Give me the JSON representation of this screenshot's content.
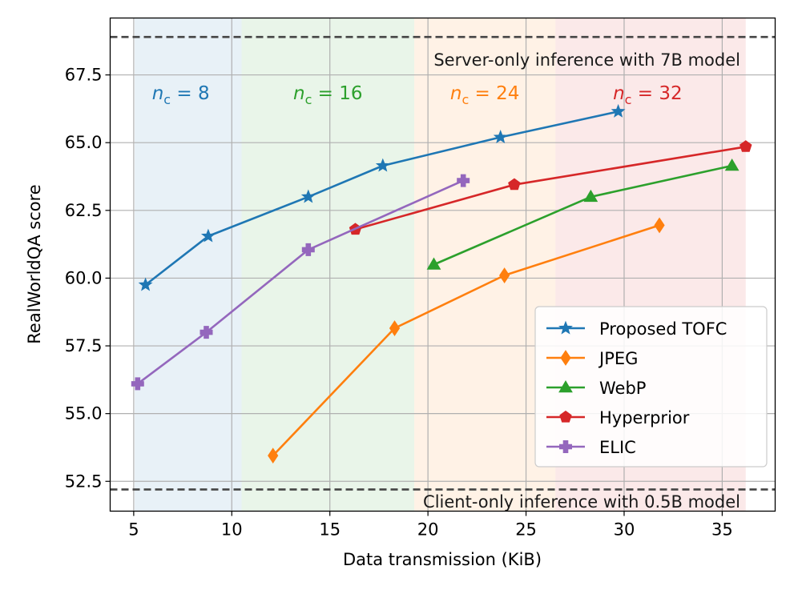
{
  "chart_data": {
    "type": "line",
    "xlabel": "Data transmission (KiB)",
    "ylabel": "RealWorldQA score",
    "xlim": [
      3.8,
      37.7
    ],
    "ylim": [
      51.4,
      69.6
    ],
    "grid": true,
    "x_ticks": [
      5,
      10,
      15,
      20,
      25,
      30,
      35
    ],
    "y_ticks": [
      52.5,
      55.0,
      57.5,
      60.0,
      62.5,
      65.0,
      67.5
    ],
    "x_tick_labels": [
      "5",
      "10",
      "15",
      "20",
      "25",
      "30",
      "35"
    ],
    "y_tick_labels": [
      "52.5",
      "55.0",
      "57.5",
      "60.0",
      "62.5",
      "65.0",
      "67.5"
    ],
    "bands": [
      {
        "label": "n_c = 8",
        "sub": "c",
        "value_text": "8",
        "x_start": 5.05,
        "x_end": 10.5,
        "color": "#1f77b4",
        "label_x": 7.4
      },
      {
        "label": "n_c = 16",
        "sub": "c",
        "value_text": "16",
        "x_start": 10.5,
        "x_end": 19.3,
        "color": "#2ca02c",
        "label_x": 14.9
      },
      {
        "label": "n_c = 24",
        "sub": "c",
        "value_text": "24",
        "x_start": 19.3,
        "x_end": 26.5,
        "color": "#ff7f0e",
        "label_x": 22.9
      },
      {
        "label": "n_c = 32",
        "sub": "c",
        "value_text": "32",
        "x_start": 26.5,
        "x_end": 36.2,
        "color": "#d62728",
        "label_x": 31.2
      }
    ],
    "reference_lines": [
      {
        "label": "Server-only inference with 7B model",
        "y": 68.9
      },
      {
        "label": "Client-only inference with 0.5B model",
        "y": 52.2
      }
    ],
    "series": [
      {
        "name": "Proposed TOFC",
        "color": "#1f77b4",
        "marker": "star",
        "x": [
          5.6,
          8.8,
          13.9,
          17.7,
          23.7,
          29.7
        ],
        "y": [
          59.75,
          61.55,
          63.0,
          64.15,
          65.2,
          66.15
        ]
      },
      {
        "name": "JPEG",
        "color": "#ff7f0e",
        "marker": "diamond",
        "x": [
          12.1,
          18.3,
          23.9,
          31.8
        ],
        "y": [
          53.45,
          58.15,
          60.1,
          61.95
        ]
      },
      {
        "name": "WebP",
        "color": "#2ca02c",
        "marker": "triangle",
        "x": [
          20.3,
          28.3,
          35.5
        ],
        "y": [
          60.5,
          63.0,
          64.15
        ]
      },
      {
        "name": "Hyperprior",
        "color": "#d62728",
        "marker": "pentagon",
        "x": [
          16.3,
          24.4,
          36.2
        ],
        "y": [
          61.8,
          63.45,
          64.85
        ]
      },
      {
        "name": "ELIC",
        "color": "#9467bd",
        "marker": "plus",
        "x": [
          5.2,
          8.7,
          13.9,
          21.8
        ],
        "y": [
          56.1,
          58.0,
          61.05,
          63.6
        ]
      }
    ],
    "legend_position": "lower-right"
  }
}
